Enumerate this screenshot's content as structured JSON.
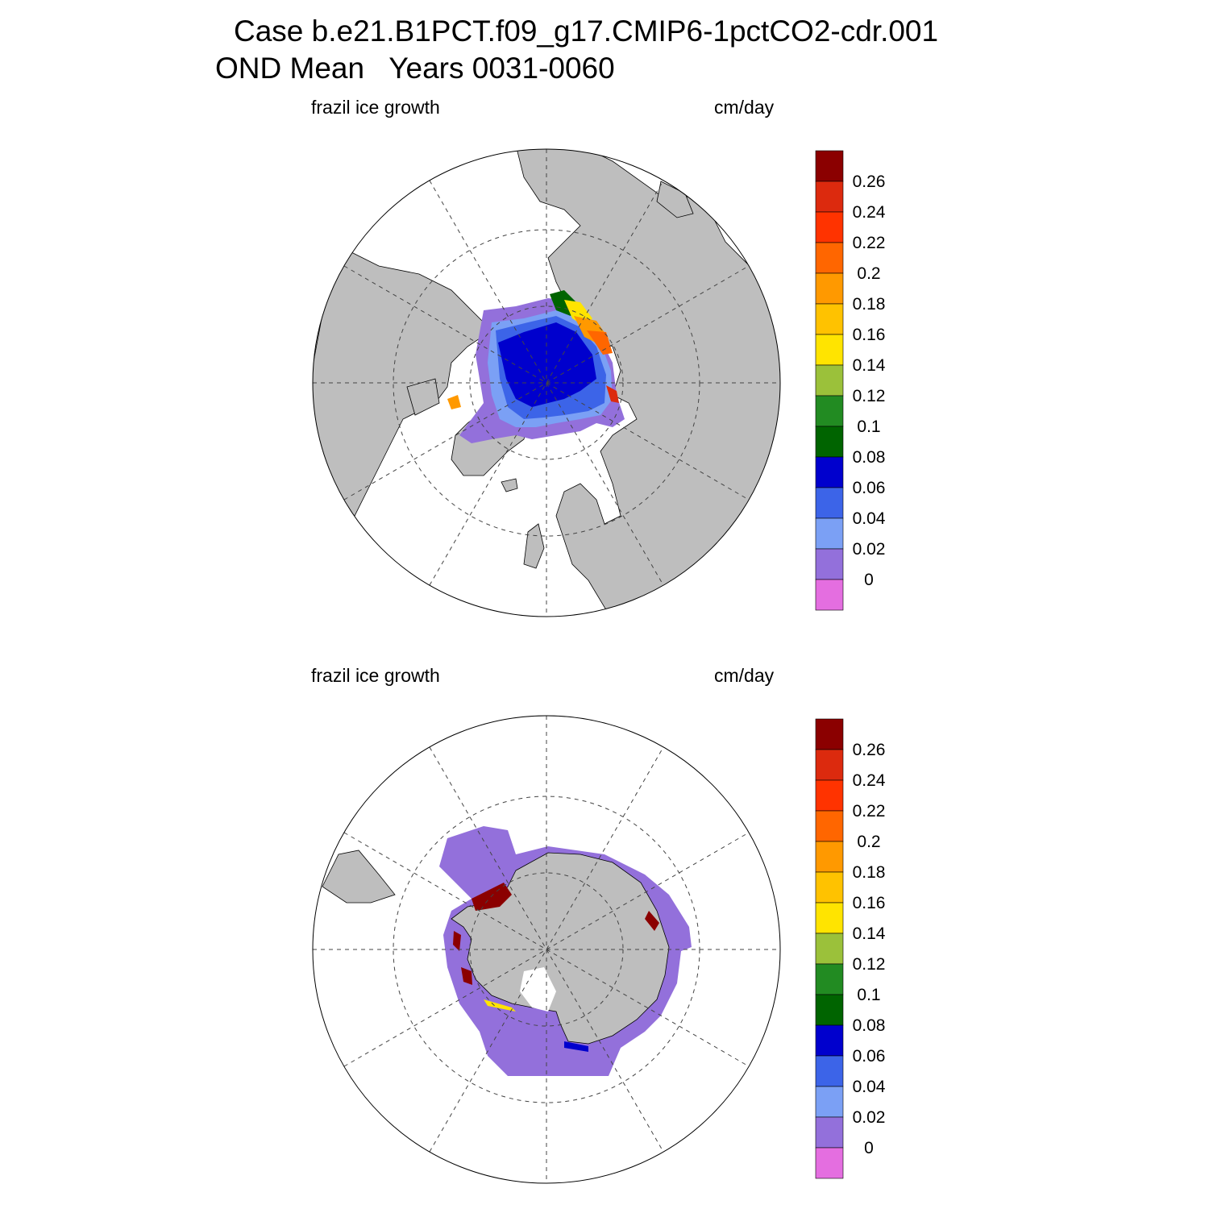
{
  "title": {
    "line1": "Case b.e21.B1PCT.f09_g17.CMIP6-1pctCO2-cdr.001",
    "line2": "OND Mean   Years 0031-0060"
  },
  "colors": {
    "land": "#bebebe",
    "ocean": "#ffffff",
    "boundary": "#000000"
  },
  "colorbar": {
    "labels": [
      "0.26",
      "0.24",
      "0.22",
      "0.2",
      "0.18",
      "0.16",
      "0.14",
      "0.12",
      "0.1",
      "0.08",
      "0.06",
      "0.04",
      "0.02",
      "0"
    ],
    "colors_top_to_bottom": [
      "#8b0000",
      "#dc2a0e",
      "#ff3300",
      "#ff6600",
      "#ff9900",
      "#ffc200",
      "#ffe400",
      "#9bc13a",
      "#228b22",
      "#006400",
      "#0000cd",
      "#3c64e8",
      "#7ba0f5",
      "#9370db",
      "#e46ee0"
    ]
  },
  "panels": [
    {
      "id": "north",
      "variable_label": "frazil ice growth",
      "units_label": "cm/day",
      "hemisphere": "NH"
    },
    {
      "id": "south",
      "variable_label": "frazil ice growth",
      "units_label": "cm/day",
      "hemisphere": "SH"
    }
  ]
}
